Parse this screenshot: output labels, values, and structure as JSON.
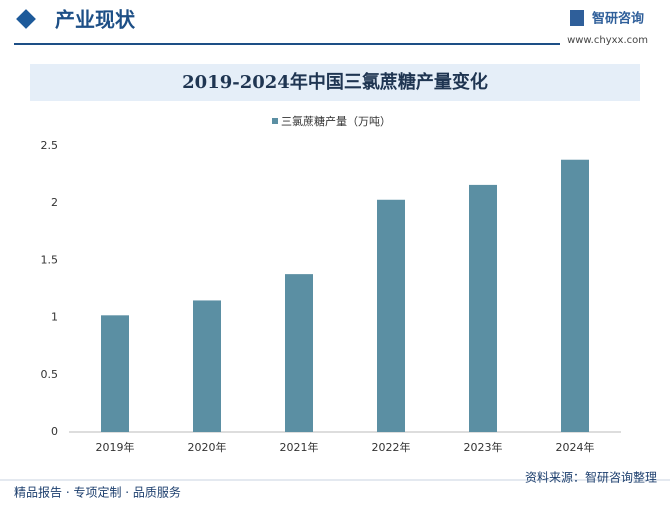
{
  "header": {
    "title": "产业现状",
    "logo": "智研咨询",
    "url": "www.chyxx.com"
  },
  "chart_data": {
    "type": "bar",
    "title": "2019-2024年中国三氯蔗糖产量变化",
    "categories": [
      "2019年",
      "2020年",
      "2021年",
      "2022年",
      "2023年",
      "2024年"
    ],
    "series": [
      {
        "name": "三氯蔗糖产量（万吨）",
        "color": "#5b8fa3",
        "values": [
          1.02,
          1.15,
          1.38,
          2.03,
          2.16,
          2.38
        ]
      }
    ],
    "ylim": [
      0,
      2.5
    ],
    "yticks": [
      0,
      0.5,
      1,
      1.5,
      2,
      2.5
    ],
    "grid": false
  },
  "footer": {
    "left": "精品报告 · 专项定制 · 品质服务",
    "source": "资料来源：智研咨询整理"
  }
}
